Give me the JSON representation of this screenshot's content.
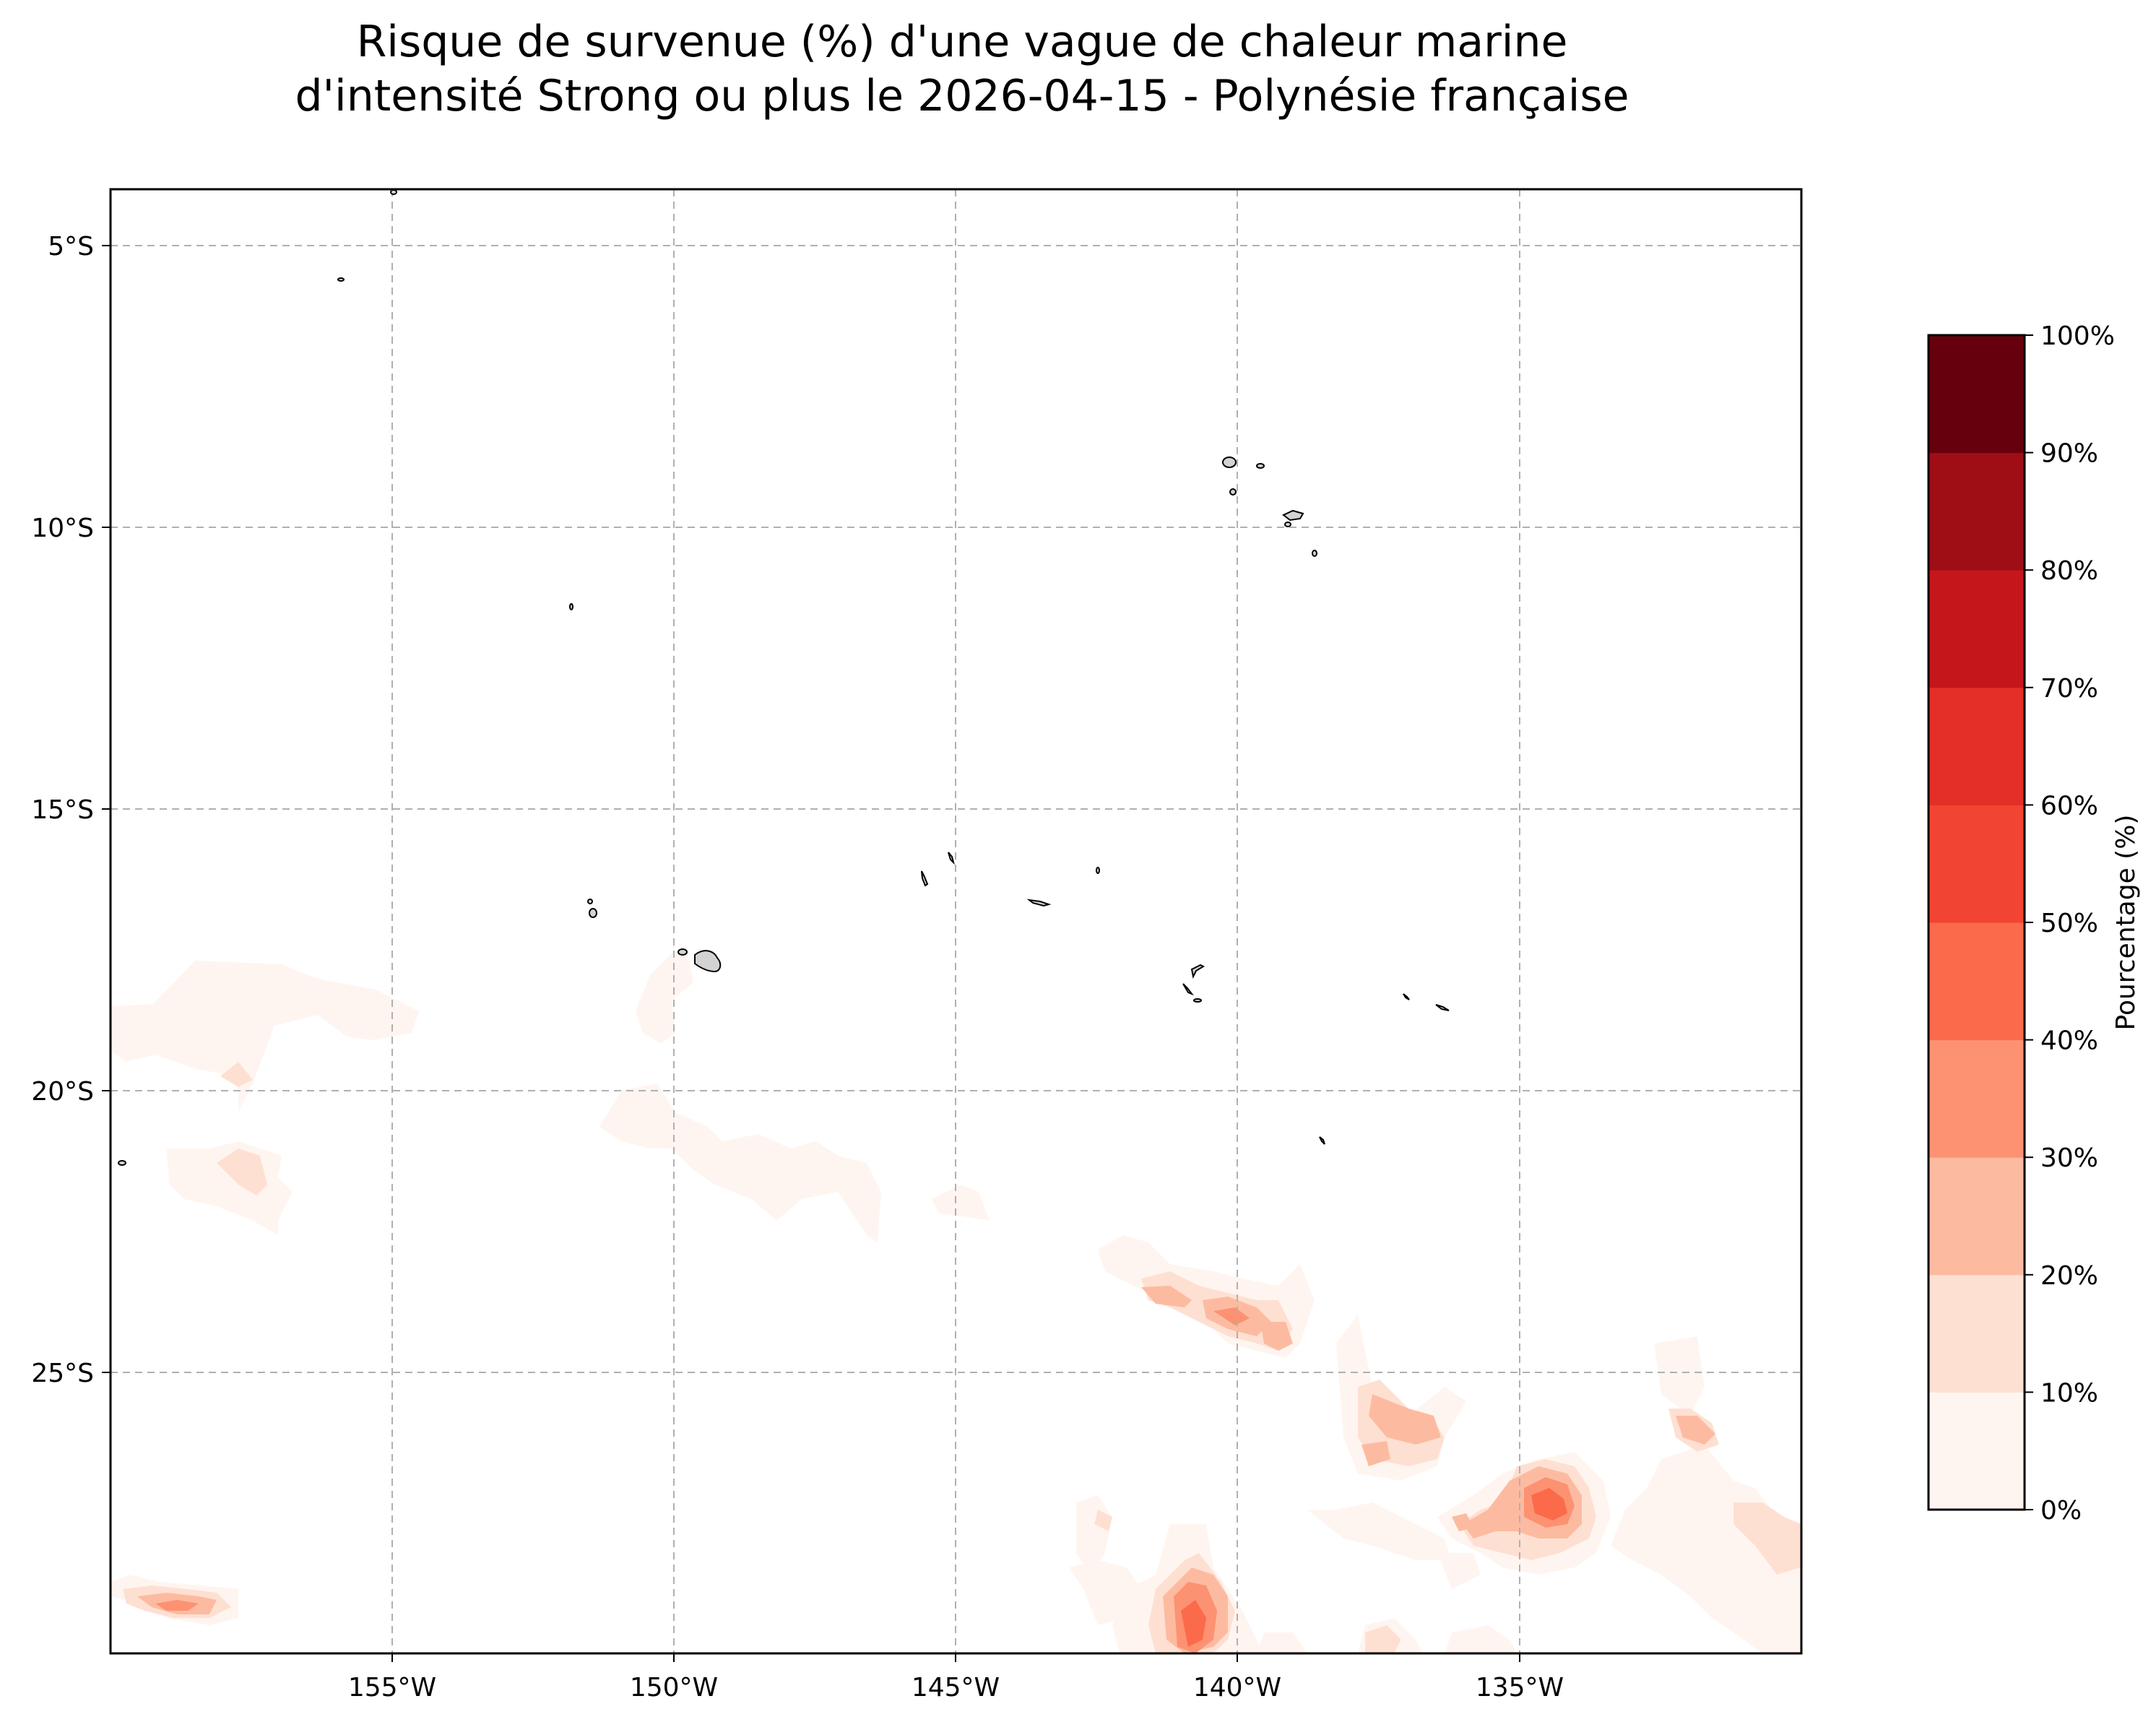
{
  "title_line1": "Risque de survenue (%) d'une vague de chaleur marine",
  "title_line2": "d'intensité Strong ou plus le 2026-04-15 - Polynésie française",
  "lon_labels": [
    "155°W",
    "150°W",
    "145°W",
    "140°W",
    "135°W"
  ],
  "lat_labels": [
    "5°S",
    "10°S",
    "15°S",
    "20°S",
    "25°S"
  ],
  "colorbar": {
    "label": "Pourcentage (%)",
    "tick_labels": [
      "0%",
      "10%",
      "20%",
      "30%",
      "40%",
      "50%",
      "60%",
      "70%",
      "80%",
      "90%",
      "100%"
    ],
    "colors": [
      "#fff5f0",
      "#fee0d2",
      "#fcbba1",
      "#fc9272",
      "#fb6a4a",
      "#f14432",
      "#e32f27",
      "#c5161c",
      "#9f0e15",
      "#67000d"
    ]
  },
  "map": {
    "lon_range": [
      -160,
      -130
    ],
    "lat_range": [
      -30,
      -4
    ],
    "gridlines": true,
    "land_color": "#d3d3d3"
  }
}
